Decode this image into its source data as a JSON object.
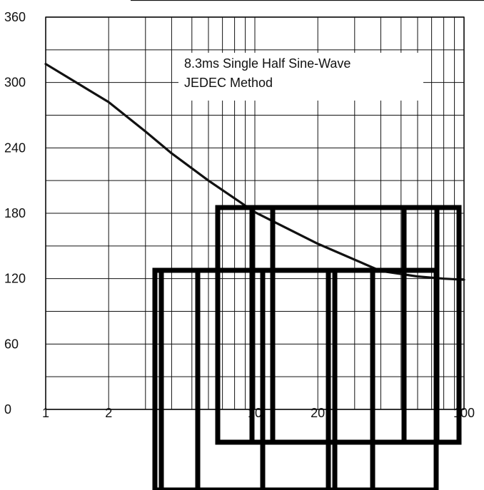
{
  "chart_data": {
    "type": "line",
    "title": "",
    "xlabel": "",
    "ylabel": "",
    "x_scale": "log",
    "xlim": [
      1,
      100
    ],
    "ylim": [
      0,
      360
    ],
    "grid": true,
    "x_ticks": [
      {
        "value": 1,
        "label": "1"
      },
      {
        "value": 2,
        "label": "2"
      },
      {
        "value": 10,
        "label": "10"
      },
      {
        "value": 20,
        "label": "20"
      },
      {
        "value": 100,
        "label": "100"
      }
    ],
    "y_ticks": [
      {
        "value": 0,
        "label": "0"
      },
      {
        "value": 60,
        "label": "60"
      },
      {
        "value": 120,
        "label": "120"
      },
      {
        "value": 180,
        "label": "180"
      },
      {
        "value": 240,
        "label": "240"
      },
      {
        "value": 300,
        "label": "300"
      },
      {
        "value": 360,
        "label": "360"
      }
    ],
    "series": [
      {
        "name": "",
        "x": [
          1,
          1.4,
          2,
          3,
          4,
          6,
          10,
          20,
          40,
          60,
          80,
          100
        ],
        "y": [
          317,
          300,
          282,
          255,
          235,
          210,
          181,
          152,
          127,
          122,
          120,
          119
        ]
      }
    ],
    "annotations": [
      "8.3ms Single Half Sine-Wave",
      "JEDEC Method"
    ]
  },
  "colors": {
    "line": "#111111",
    "grid": "#111111",
    "background": "#ffffff",
    "overlay": "#000000"
  }
}
